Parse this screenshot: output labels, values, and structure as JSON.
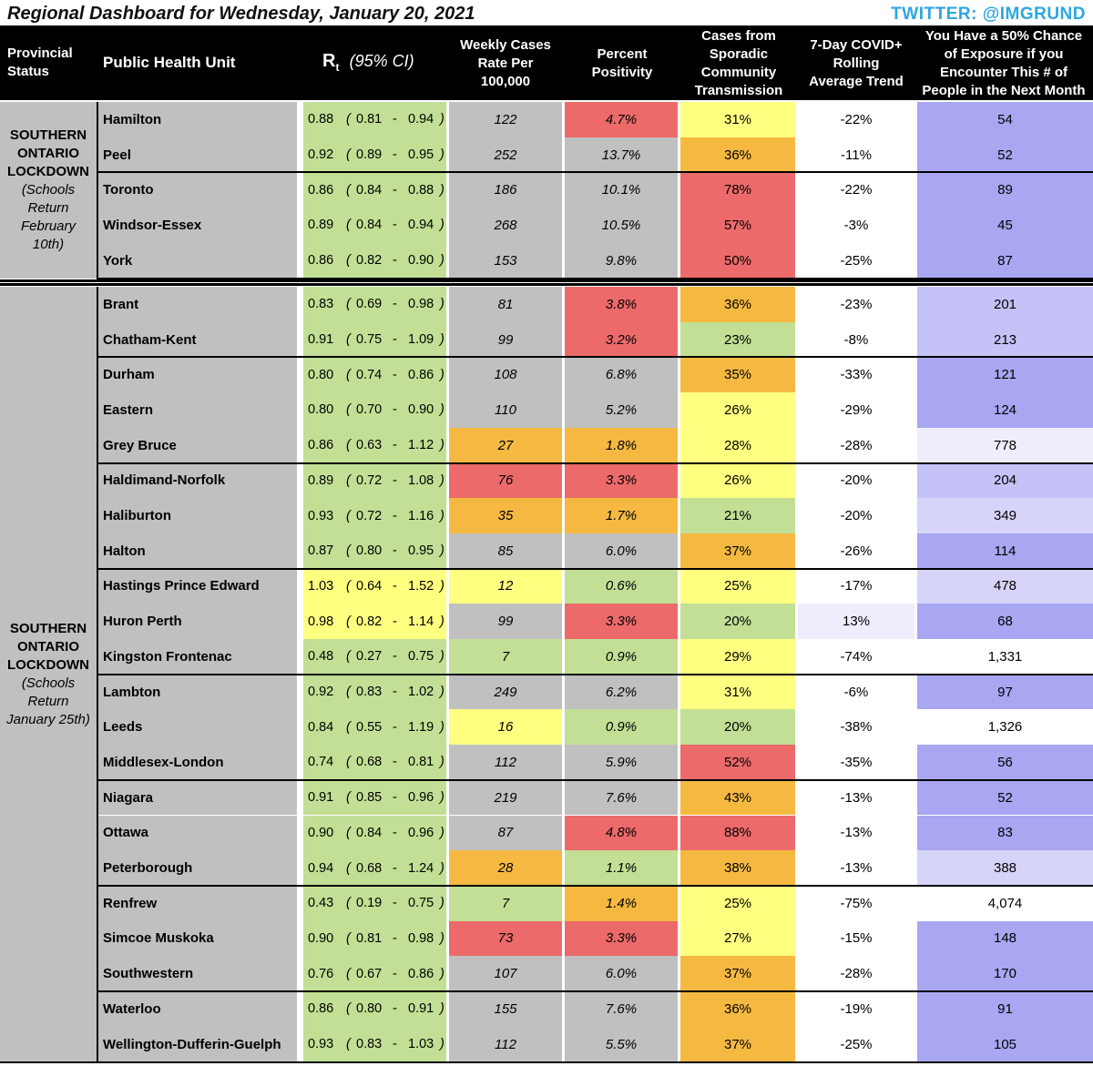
{
  "title": "Regional Dashboard for Wednesday, January 20, 2021",
  "twitter": "TWITTER: @IMGRUND",
  "headers": {
    "status": [
      "Provincial",
      "Status"
    ],
    "phu": "Public Health Unit",
    "rt_main": "R",
    "rt_sub": "t",
    "rt_ci": "(95% CI)",
    "cases": [
      "Weekly Cases",
      "Rate Per",
      "100,000"
    ],
    "pct": [
      "Percent",
      "Positivity"
    ],
    "spor": [
      "Cases from",
      "Sporadic",
      "Community",
      "Transmission"
    ],
    "trend": [
      "7-Day COVID+",
      "Rolling",
      "Average Trend"
    ],
    "exp": [
      "You Have a 50% Chance",
      "of Exposure if you",
      "Encounter This # of",
      "People in the Next Month"
    ]
  },
  "regions": [
    {
      "title": [
        "SOUTHERN",
        "ONTARIO",
        "LOCKDOWN"
      ],
      "note": [
        "(Schools",
        "Return",
        "February",
        "10th)"
      ]
    },
    {
      "title": [
        "SOUTHERN",
        "ONTARIO",
        "LOCKDOWN"
      ],
      "note": [
        "(Schools",
        "Return",
        "January 25th)"
      ]
    }
  ],
  "colors": {
    "green": "#c2df95",
    "yellow": "#ffff80",
    "orange": "#f5b942",
    "red": "#ec6a6a",
    "gray": "#c0c0c0",
    "white": "#ffffff",
    "purple_dark": "#a9a6f2",
    "purple_mid": "#c4c2f6",
    "purple_light": "#d6d4f8",
    "purple_pale": "#eeedfc"
  },
  "rows": [
    {
      "phu": "Hamilton",
      "rt": "0.88",
      "lo": "0.81",
      "hi": "0.94",
      "cases": "122",
      "pct": "4.7%",
      "spor": "31%",
      "trend": "-22%",
      "exp": "54",
      "c": [
        "green",
        "gray",
        "red",
        "yellow",
        "white",
        "purple_dark"
      ]
    },
    {
      "phu": "Peel",
      "rt": "0.92",
      "lo": "0.89",
      "hi": "0.95",
      "cases": "252",
      "pct": "13.7%",
      "spor": "36%",
      "trend": "-11%",
      "exp": "52",
      "c": [
        "green",
        "gray",
        "gray",
        "orange",
        "white",
        "purple_dark"
      ]
    },
    {
      "phu": "Toronto",
      "rt": "0.86",
      "lo": "0.84",
      "hi": "0.88",
      "cases": "186",
      "pct": "10.1%",
      "spor": "78%",
      "trend": "-22%",
      "exp": "89",
      "c": [
        "green",
        "gray",
        "gray",
        "red",
        "white",
        "purple_dark"
      ]
    },
    {
      "phu": "Windsor-Essex",
      "rt": "0.89",
      "lo": "0.84",
      "hi": "0.94",
      "cases": "268",
      "pct": "10.5%",
      "spor": "57%",
      "trend": "-3%",
      "exp": "45",
      "c": [
        "green",
        "gray",
        "gray",
        "red",
        "white",
        "purple_dark"
      ]
    },
    {
      "phu": "York",
      "rt": "0.86",
      "lo": "0.82",
      "hi": "0.90",
      "cases": "153",
      "pct": "9.8%",
      "spor": "50%",
      "trend": "-25%",
      "exp": "87",
      "c": [
        "green",
        "gray",
        "gray",
        "red",
        "white",
        "purple_dark"
      ]
    },
    {
      "phu": "Brant",
      "rt": "0.83",
      "lo": "0.69",
      "hi": "0.98",
      "cases": "81",
      "pct": "3.8%",
      "spor": "36%",
      "trend": "-23%",
      "exp": "201",
      "c": [
        "green",
        "gray",
        "red",
        "orange",
        "white",
        "purple_mid"
      ]
    },
    {
      "phu": "Chatham-Kent",
      "rt": "0.91",
      "lo": "0.75",
      "hi": "1.09",
      "cases": "99",
      "pct": "3.2%",
      "spor": "23%",
      "trend": "-8%",
      "exp": "213",
      "c": [
        "green",
        "gray",
        "red",
        "green",
        "white",
        "purple_mid"
      ]
    },
    {
      "phu": "Durham",
      "rt": "0.80",
      "lo": "0.74",
      "hi": "0.86",
      "cases": "108",
      "pct": "6.8%",
      "spor": "35%",
      "trend": "-33%",
      "exp": "121",
      "c": [
        "green",
        "gray",
        "gray",
        "orange",
        "white",
        "purple_dark"
      ]
    },
    {
      "phu": "Eastern",
      "rt": "0.80",
      "lo": "0.70",
      "hi": "0.90",
      "cases": "110",
      "pct": "5.2%",
      "spor": "26%",
      "trend": "-29%",
      "exp": "124",
      "c": [
        "green",
        "gray",
        "gray",
        "yellow",
        "white",
        "purple_dark"
      ]
    },
    {
      "phu": "Grey Bruce",
      "rt": "0.86",
      "lo": "0.63",
      "hi": "1.12",
      "cases": "27",
      "pct": "1.8%",
      "spor": "28%",
      "trend": "-28%",
      "exp": "778",
      "c": [
        "green",
        "orange",
        "orange",
        "yellow",
        "white",
        "purple_pale"
      ]
    },
    {
      "phu": "Haldimand-Norfolk",
      "rt": "0.89",
      "lo": "0.72",
      "hi": "1.08",
      "cases": "76",
      "pct": "3.3%",
      "spor": "26%",
      "trend": "-20%",
      "exp": "204",
      "c": [
        "green",
        "red",
        "red",
        "yellow",
        "white",
        "purple_mid"
      ]
    },
    {
      "phu": "Haliburton",
      "rt": "0.93",
      "lo": "0.72",
      "hi": "1.16",
      "cases": "35",
      "pct": "1.7%",
      "spor": "21%",
      "trend": "-20%",
      "exp": "349",
      "c": [
        "green",
        "orange",
        "orange",
        "green",
        "white",
        "purple_light"
      ]
    },
    {
      "phu": "Halton",
      "rt": "0.87",
      "lo": "0.80",
      "hi": "0.95",
      "cases": "85",
      "pct": "6.0%",
      "spor": "37%",
      "trend": "-26%",
      "exp": "114",
      "c": [
        "green",
        "gray",
        "gray",
        "orange",
        "white",
        "purple_dark"
      ]
    },
    {
      "phu": "Hastings Prince Edward",
      "rt": "1.03",
      "lo": "0.64",
      "hi": "1.52",
      "cases": "12",
      "pct": "0.6%",
      "spor": "25%",
      "trend": "-17%",
      "exp": "478",
      "c": [
        "yellow",
        "yellow",
        "green",
        "yellow",
        "white",
        "purple_light"
      ]
    },
    {
      "phu": "Huron Perth",
      "rt": "0.98",
      "lo": "0.82",
      "hi": "1.14",
      "cases": "99",
      "pct": "3.3%",
      "spor": "20%",
      "trend": "13%",
      "exp": "68",
      "c": [
        "yellow",
        "gray",
        "red",
        "green",
        "purple_pale",
        "purple_dark"
      ]
    },
    {
      "phu": "Kingston Frontenac",
      "rt": "0.48",
      "lo": "0.27",
      "hi": "0.75",
      "cases": "7",
      "pct": "0.9%",
      "spor": "29%",
      "trend": "-74%",
      "exp": "1,331",
      "c": [
        "green",
        "green",
        "green",
        "yellow",
        "white",
        "white"
      ]
    },
    {
      "phu": "Lambton",
      "rt": "0.92",
      "lo": "0.83",
      "hi": "1.02",
      "cases": "249",
      "pct": "6.2%",
      "spor": "31%",
      "trend": "-6%",
      "exp": "97",
      "c": [
        "green",
        "gray",
        "gray",
        "yellow",
        "white",
        "purple_dark"
      ]
    },
    {
      "phu": "Leeds",
      "rt": "0.84",
      "lo": "0.55",
      "hi": "1.19",
      "cases": "16",
      "pct": "0.9%",
      "spor": "20%",
      "trend": "-38%",
      "exp": "1,326",
      "c": [
        "green",
        "yellow",
        "green",
        "green",
        "white",
        "white"
      ]
    },
    {
      "phu": "Middlesex-London",
      "rt": "0.74",
      "lo": "0.68",
      "hi": "0.81",
      "cases": "112",
      "pct": "5.9%",
      "spor": "52%",
      "trend": "-35%",
      "exp": "56",
      "c": [
        "green",
        "gray",
        "gray",
        "red",
        "white",
        "purple_dark"
      ]
    },
    {
      "phu": "Niagara",
      "rt": "0.91",
      "lo": "0.85",
      "hi": "0.96",
      "cases": "219",
      "pct": "7.6%",
      "spor": "43%",
      "trend": "-13%",
      "exp": "52",
      "c": [
        "green",
        "gray",
        "gray",
        "orange",
        "white",
        "purple_dark"
      ]
    },
    {
      "phu": "Ottawa",
      "rt": "0.90",
      "lo": "0.84",
      "hi": "0.96",
      "cases": "87",
      "pct": "4.8%",
      "spor": "88%",
      "trend": "-13%",
      "exp": "83",
      "c": [
        "green",
        "gray",
        "red",
        "red",
        "white",
        "purple_dark"
      ]
    },
    {
      "phu": "Peterborough",
      "rt": "0.94",
      "lo": "0.68",
      "hi": "1.24",
      "cases": "28",
      "pct": "1.1%",
      "spor": "38%",
      "trend": "-13%",
      "exp": "388",
      "c": [
        "green",
        "orange",
        "green",
        "orange",
        "white",
        "purple_light"
      ]
    },
    {
      "phu": "Renfrew",
      "rt": "0.43",
      "lo": "0.19",
      "hi": "0.75",
      "cases": "7",
      "pct": "1.4%",
      "spor": "25%",
      "trend": "-75%",
      "exp": "4,074",
      "c": [
        "green",
        "green",
        "orange",
        "yellow",
        "white",
        "white"
      ]
    },
    {
      "phu": "Simcoe Muskoka",
      "rt": "0.90",
      "lo": "0.81",
      "hi": "0.98",
      "cases": "73",
      "pct": "3.3%",
      "spor": "27%",
      "trend": "-15%",
      "exp": "148",
      "c": [
        "green",
        "red",
        "red",
        "yellow",
        "white",
        "purple_dark"
      ]
    },
    {
      "phu": "Southwestern",
      "rt": "0.76",
      "lo": "0.67",
      "hi": "0.86",
      "cases": "107",
      "pct": "6.0%",
      "spor": "37%",
      "trend": "-28%",
      "exp": "170",
      "c": [
        "green",
        "gray",
        "gray",
        "orange",
        "white",
        "purple_dark"
      ]
    },
    {
      "phu": "Waterloo",
      "rt": "0.86",
      "lo": "0.80",
      "hi": "0.91",
      "cases": "155",
      "pct": "7.6%",
      "spor": "36%",
      "trend": "-19%",
      "exp": "91",
      "c": [
        "green",
        "gray",
        "gray",
        "orange",
        "white",
        "purple_dark"
      ]
    },
    {
      "phu": "Wellington-Dufferin-Guelph",
      "rt": "0.93",
      "lo": "0.83",
      "hi": "1.03",
      "cases": "112",
      "pct": "5.5%",
      "spor": "37%",
      "trend": "-25%",
      "exp": "105",
      "c": [
        "green",
        "gray",
        "gray",
        "orange",
        "white",
        "purple_dark"
      ]
    }
  ]
}
